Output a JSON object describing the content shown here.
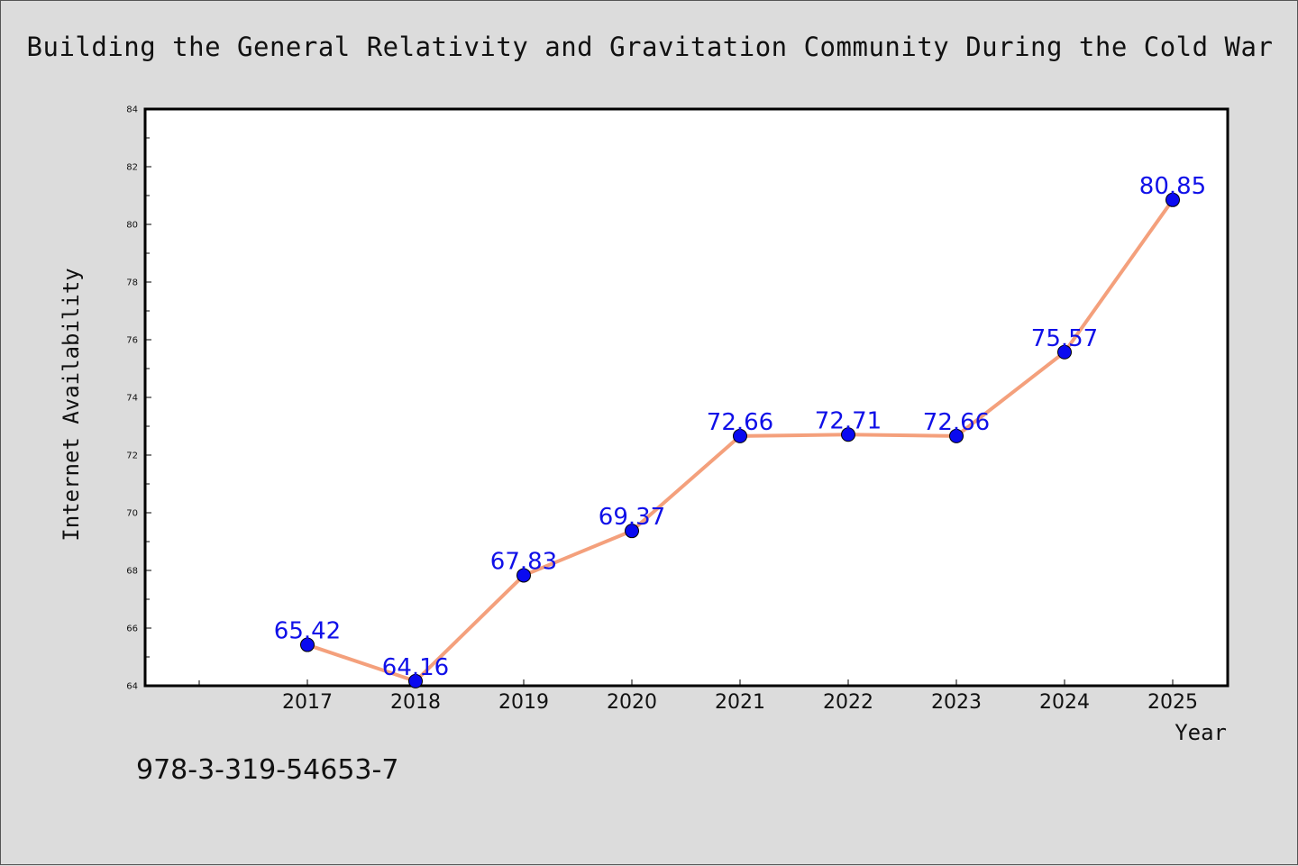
{
  "chart_data": {
    "type": "line",
    "title": "Building the General Relativity and Gravitation Community During the Cold War",
    "xlabel": "Year",
    "ylabel": "Internet Availability",
    "categories": [
      "2017",
      "2018",
      "2019",
      "2020",
      "2021",
      "2022",
      "2023",
      "2024",
      "2025"
    ],
    "values": [
      65.42,
      64.16,
      67.83,
      69.37,
      72.66,
      72.71,
      72.66,
      75.57,
      80.85
    ],
    "data_labels": [
      "65.42",
      "64.16",
      "67.83",
      "69.37",
      "72.66",
      "72.71",
      "72.66",
      "75.57",
      "80.85"
    ],
    "ylim": [
      64,
      84
    ],
    "yticks": [
      64,
      66,
      68,
      70,
      72,
      74,
      76,
      78,
      80,
      82,
      84
    ],
    "grid": false,
    "legend": "none",
    "line_color": "#f4a07c",
    "marker_color": "#0a0af0",
    "label_color": "#1010e8"
  },
  "footer": {
    "isbn": "978-3-319-54653-7"
  }
}
